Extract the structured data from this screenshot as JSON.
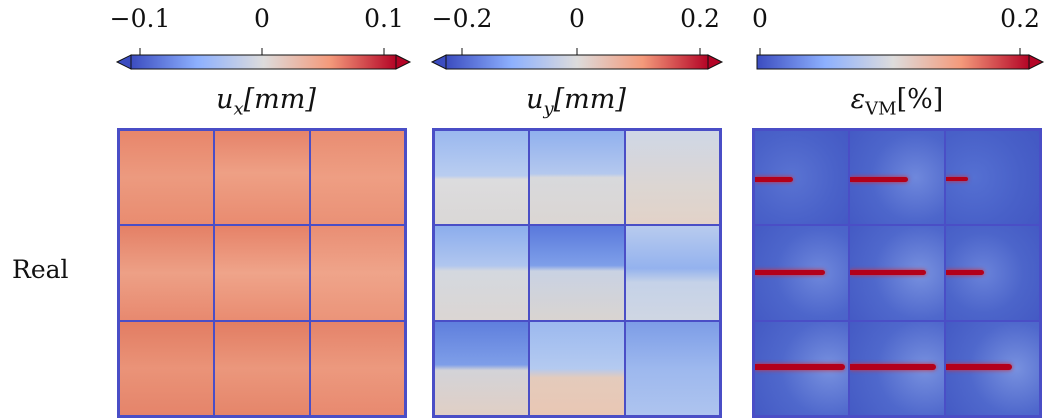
{
  "row_label": "Real",
  "colorbars": [
    {
      "name": "ux",
      "label_main": "u",
      "label_sub": "x",
      "label_unit": "[mm]",
      "ticks": [
        "−0.1",
        "0",
        "0.1"
      ],
      "range": [
        -0.1,
        0.1
      ],
      "extend": "both",
      "colormap": [
        "#3b4cc0",
        "#8db0fe",
        "#dddcdc",
        "#f49a7b",
        "#b40426"
      ]
    },
    {
      "name": "uy",
      "label_main": "u",
      "label_sub": "y",
      "label_unit": "[mm]",
      "ticks": [
        "−0.2",
        "0",
        "0.2"
      ],
      "range": [
        -0.2,
        0.2
      ],
      "extend": "both",
      "colormap": [
        "#3b4cc0",
        "#8db0fe",
        "#dddcdc",
        "#f49a7b",
        "#b40426"
      ]
    },
    {
      "name": "evm",
      "label_main": "ε",
      "label_sub": "VM",
      "label_unit": "[%]",
      "ticks": [
        "0",
        "0.2"
      ],
      "range": [
        0,
        0.2
      ],
      "extend": "max",
      "colormap": [
        "#3b4cc0",
        "#8db0fe",
        "#dddcdc",
        "#f49a7b",
        "#b40426"
      ]
    }
  ],
  "grid_colors": {
    "border": "#4a4ec6",
    "ux_fill": "#e88a6e",
    "uy_base": "#c9d6ec",
    "evm_fill": "#4a63cc",
    "crack": "#b3001a"
  }
}
